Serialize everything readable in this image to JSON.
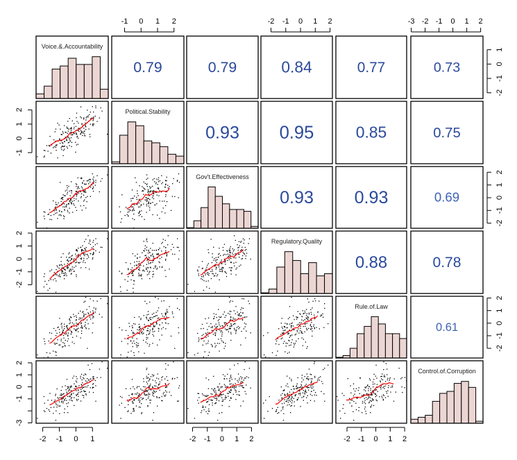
{
  "chart_data": {
    "type": "scatter-matrix",
    "variables": [
      {
        "name": "Voice.&.Accountability",
        "range": [
          -2.4,
          1.95
        ],
        "ticks": [
          -2,
          -1,
          0,
          1
        ],
        "histogram": [
          3,
          8,
          19,
          21,
          26,
          22,
          22,
          27,
          6
        ]
      },
      {
        "name": "Political.Stability",
        "range": [
          -1.78,
          2.6
        ],
        "ticks": [
          -1,
          0,
          1,
          2
        ],
        "histogram": [
          1,
          15,
          22,
          20,
          12,
          11,
          9,
          5,
          4
        ]
      },
      {
        "name": "Gov't.Effectiveness",
        "range": [
          -2.4,
          2.45
        ],
        "ticks": [
          -2,
          -1,
          0,
          1,
          2
        ],
        "histogram": [
          0.3,
          4,
          11,
          22,
          17,
          13,
          10,
          10,
          9,
          1
        ]
      },
      {
        "name": "Regulatory.Quality",
        "range": [
          -2.68,
          2.16
        ],
        "ticks": [
          -2,
          -1,
          0,
          1,
          2
        ],
        "histogram": [
          0.3,
          2,
          12,
          19,
          15,
          9,
          14,
          8,
          9
        ]
      },
      {
        "name": "Rule.of.Law",
        "range": [
          -2.77,
          2.14
        ],
        "ticks": [
          -2,
          -1,
          0,
          1,
          2
        ],
        "histogram": [
          0.3,
          1,
          4,
          10,
          13,
          17,
          14,
          10,
          10,
          8
        ]
      },
      {
        "name": "Control.of.Corruption",
        "range": [
          -3.03,
          2.17
        ],
        "ticks": [
          -3,
          -2,
          -1,
          0,
          1,
          2
        ],
        "histogram": [
          2,
          3,
          4,
          11,
          15,
          16,
          20,
          21,
          18,
          1
        ]
      }
    ],
    "row_tick_labels": {
      "0": [
        "-2",
        "-1",
        "0",
        "1"
      ],
      "1": [
        "-1",
        "0",
        "1",
        "2"
      ],
      "2": [
        "-2",
        "-1",
        "0",
        "1",
        "2"
      ],
      "3": [
        "-2",
        "-1",
        "0",
        "1",
        "2"
      ],
      "4": [
        "-2",
        "-1",
        "0",
        "1",
        "2"
      ],
      "5": [
        "-3",
        "-1",
        "0",
        "1",
        "2"
      ]
    },
    "correlations": [
      {
        "row": 0,
        "col": 1,
        "r": "0.79"
      },
      {
        "row": 0,
        "col": 2,
        "r": "0.79"
      },
      {
        "row": 0,
        "col": 3,
        "r": "0.84"
      },
      {
        "row": 0,
        "col": 4,
        "r": "0.77"
      },
      {
        "row": 0,
        "col": 5,
        "r": "0.73"
      },
      {
        "row": 1,
        "col": 2,
        "r": "0.93"
      },
      {
        "row": 1,
        "col": 3,
        "r": "0.95"
      },
      {
        "row": 1,
        "col": 4,
        "r": "0.85"
      },
      {
        "row": 1,
        "col": 5,
        "r": "0.75"
      },
      {
        "row": 2,
        "col": 3,
        "r": "0.93"
      },
      {
        "row": 2,
        "col": 4,
        "r": "0.93"
      },
      {
        "row": 2,
        "col": 5,
        "r": "0.69"
      },
      {
        "row": 3,
        "col": 4,
        "r": "0.88"
      },
      {
        "row": 3,
        "col": 5,
        "r": "0.78"
      },
      {
        "row": 4,
        "col": 5,
        "r": "0.61"
      }
    ],
    "lower_panels": "scatter with red smoothing line",
    "diagonal_panels": "histogram",
    "colors": {
      "histogram_fill": "#ecd6d3",
      "smooth_line": "#ff0000",
      "correlation_text": "#2b4a9b",
      "points": "#000000"
    }
  }
}
